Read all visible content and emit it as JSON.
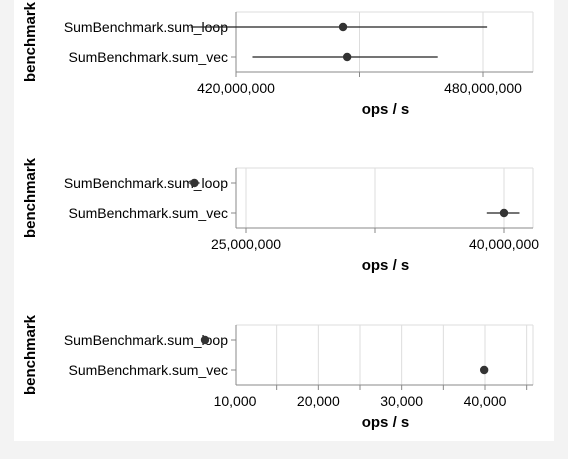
{
  "chart_data": [
    {
      "type": "scatter",
      "subtype": "point-with-error-bars",
      "ylabel": "benchmark",
      "xlabel": "ops / s",
      "categories": [
        "SumBenchmark.sum_loop",
        "SumBenchmark.sum_vec"
      ],
      "points": [
        {
          "category": "SumBenchmark.sum_loop",
          "value": 446000000,
          "low": 409000000,
          "high": 481000000
        },
        {
          "category": "SumBenchmark.sum_vec",
          "value": 447000000,
          "low": 424000000,
          "high": 469000000
        }
      ],
      "xlim": [
        420000000,
        480000000
      ],
      "xticks": [
        420000000,
        480000000
      ],
      "xtick_labels": [
        "420,000,000",
        "480,000,000"
      ],
      "grid": true
    },
    {
      "type": "scatter",
      "subtype": "point-with-error-bars",
      "ylabel": "benchmark",
      "xlabel": "ops / s",
      "categories": [
        "SumBenchmark.sum_loop",
        "SumBenchmark.sum_vec"
      ],
      "points": [
        {
          "category": "SumBenchmark.sum_loop",
          "value": 22000000,
          "low": 21700000,
          "high": 22300000
        },
        {
          "category": "SumBenchmark.sum_vec",
          "value": 40000000,
          "low": 39000000,
          "high": 40900000
        }
      ],
      "xlim": [
        25000000,
        40000000
      ],
      "xticks": [
        25000000,
        40000000
      ],
      "xtick_labels": [
        "25,000,000",
        "40,000,000"
      ],
      "grid": true
    },
    {
      "type": "scatter",
      "subtype": "point-with-error-bars",
      "ylabel": "benchmark",
      "xlabel": "ops / s",
      "categories": [
        "SumBenchmark.sum_loop",
        "SumBenchmark.sum_vec"
      ],
      "points": [
        {
          "category": "SumBenchmark.sum_loop",
          "value": 6400,
          "low": 6200,
          "high": 6600
        },
        {
          "category": "SumBenchmark.sum_vec",
          "value": 39900,
          "low": 39700,
          "high": 40100
        }
      ],
      "xlim": [
        10000,
        40000
      ],
      "xticks": [
        10000,
        20000,
        30000,
        40000
      ],
      "xtick_labels": [
        "10,000",
        "20,000",
        "30,000",
        "40,000"
      ],
      "grid": true
    }
  ]
}
